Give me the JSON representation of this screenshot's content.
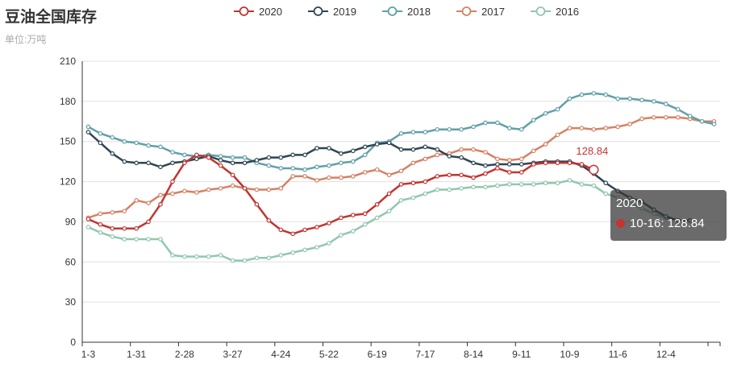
{
  "page": {
    "title": "豆油全国库存",
    "subtitle": "单位:万吨"
  },
  "tooltip": {
    "series": "2020",
    "label": "10-16",
    "value": "128.84",
    "text": "10-16: 128.84",
    "color": "#c23531"
  },
  "chart_data": {
    "type": "line",
    "title": "豆油全国库存",
    "subtitle": "单位:万吨",
    "xlabel": "",
    "ylabel": "",
    "ylim": [
      0,
      210
    ],
    "yticks": [
      0,
      30,
      60,
      90,
      120,
      150,
      180,
      210
    ],
    "xtick_labels": [
      "1-3",
      "1-31",
      "2-28",
      "3-27",
      "4-24",
      "5-22",
      "6-19",
      "7-17",
      "8-14",
      "9-11",
      "10-9",
      "11-6",
      "12-4"
    ],
    "legend_position": "top",
    "grid": "horizontal",
    "markpoint": {
      "series": "2020",
      "label": "128.84"
    },
    "series": [
      {
        "name": "2020",
        "color": "#c23531",
        "values": [
          92,
          88,
          85,
          85,
          85,
          90,
          103,
          120,
          134,
          140,
          138,
          132,
          125,
          115,
          103,
          91,
          84,
          81,
          84,
          86,
          89,
          93,
          95,
          96,
          103,
          111,
          118,
          119,
          120,
          124,
          125,
          125,
          123,
          126,
          130,
          127,
          127,
          133,
          134,
          134,
          134,
          133,
          128.84
        ]
      },
      {
        "name": "2019",
        "color": "#2f4554",
        "values": [
          157,
          149,
          141,
          135,
          134,
          134,
          131,
          134,
          135,
          137,
          139,
          136,
          134,
          134,
          136,
          138,
          138,
          140,
          140,
          145,
          145,
          141,
          143,
          146,
          148,
          149,
          144,
          144,
          146,
          144,
          139,
          138,
          134,
          132,
          133,
          133,
          133,
          134,
          135,
          135,
          135,
          132,
          126,
          119,
          113,
          108,
          105,
          99,
          94,
          91,
          91
        ]
      },
      {
        "name": "2018",
        "color": "#61a0a8",
        "values": [
          161,
          156,
          153,
          150,
          149,
          147,
          146,
          142,
          140,
          139,
          140,
          139,
          138,
          138,
          134,
          132,
          130,
          130,
          129,
          131,
          132,
          134,
          135,
          140,
          149,
          150,
          156,
          157,
          157,
          159,
          159,
          159,
          161,
          164,
          164,
          160,
          159,
          166,
          171,
          174,
          182,
          185,
          186,
          185,
          182,
          182,
          181,
          180,
          178,
          174,
          169,
          165,
          163
        ]
      },
      {
        "name": "2017",
        "color": "#d48265",
        "values": [
          93,
          96,
          97,
          98,
          106,
          104,
          110,
          111,
          113,
          112,
          114,
          115,
          117,
          115,
          114,
          114,
          115,
          124,
          124,
          121,
          123,
          123,
          124,
          127,
          129,
          125,
          128,
          134,
          137,
          140,
          141,
          144,
          144,
          142,
          137,
          136,
          137,
          143,
          148,
          155,
          160,
          160,
          159,
          160,
          161,
          163,
          167,
          168,
          168,
          168,
          167,
          165,
          165
        ]
      },
      {
        "name": "2016",
        "color": "#91c7ae",
        "values": [
          86,
          82,
          79,
          77,
          77,
          77,
          77,
          65,
          64,
          64,
          64,
          65,
          61,
          61,
          63,
          63,
          65,
          67,
          69,
          71,
          74,
          80,
          83,
          88,
          93,
          98,
          106,
          108,
          111,
          114,
          114,
          115,
          116,
          116,
          117,
          118,
          118,
          118,
          119,
          119,
          121,
          118,
          117,
          111,
          108,
          104,
          100,
          96,
          93,
          91,
          91
        ]
      }
    ]
  }
}
